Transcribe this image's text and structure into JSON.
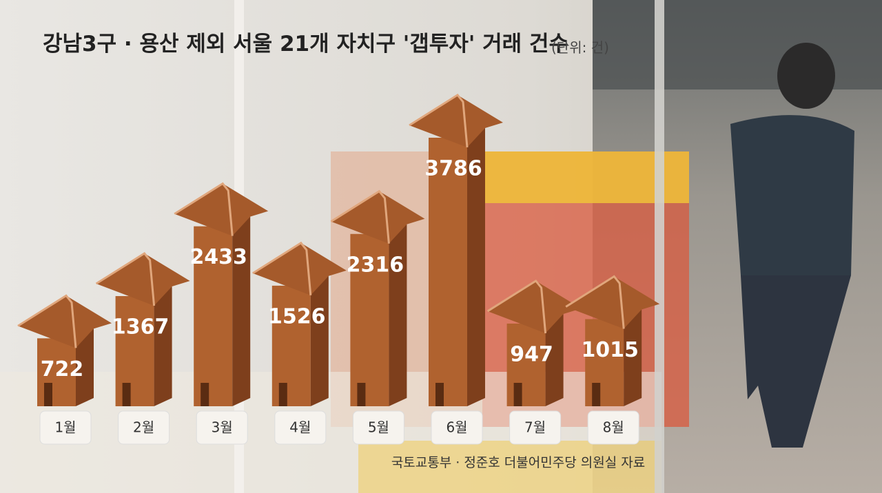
{
  "chart_data": {
    "type": "bar",
    "title": "강남3구 · 용산 제외 서울 21개 자치구 '갭투자' 거래 건수",
    "unit": "(단위: 건)",
    "source": "국토교통부 · 정준호 더불어민주당 의원실 자료",
    "categories": [
      "1월",
      "2월",
      "3월",
      "4월",
      "5월",
      "6월",
      "7월",
      "8월"
    ],
    "values": [
      722,
      1367,
      2433,
      1526,
      2316,
      3786,
      947,
      1015
    ],
    "color": "#b0622f"
  }
}
